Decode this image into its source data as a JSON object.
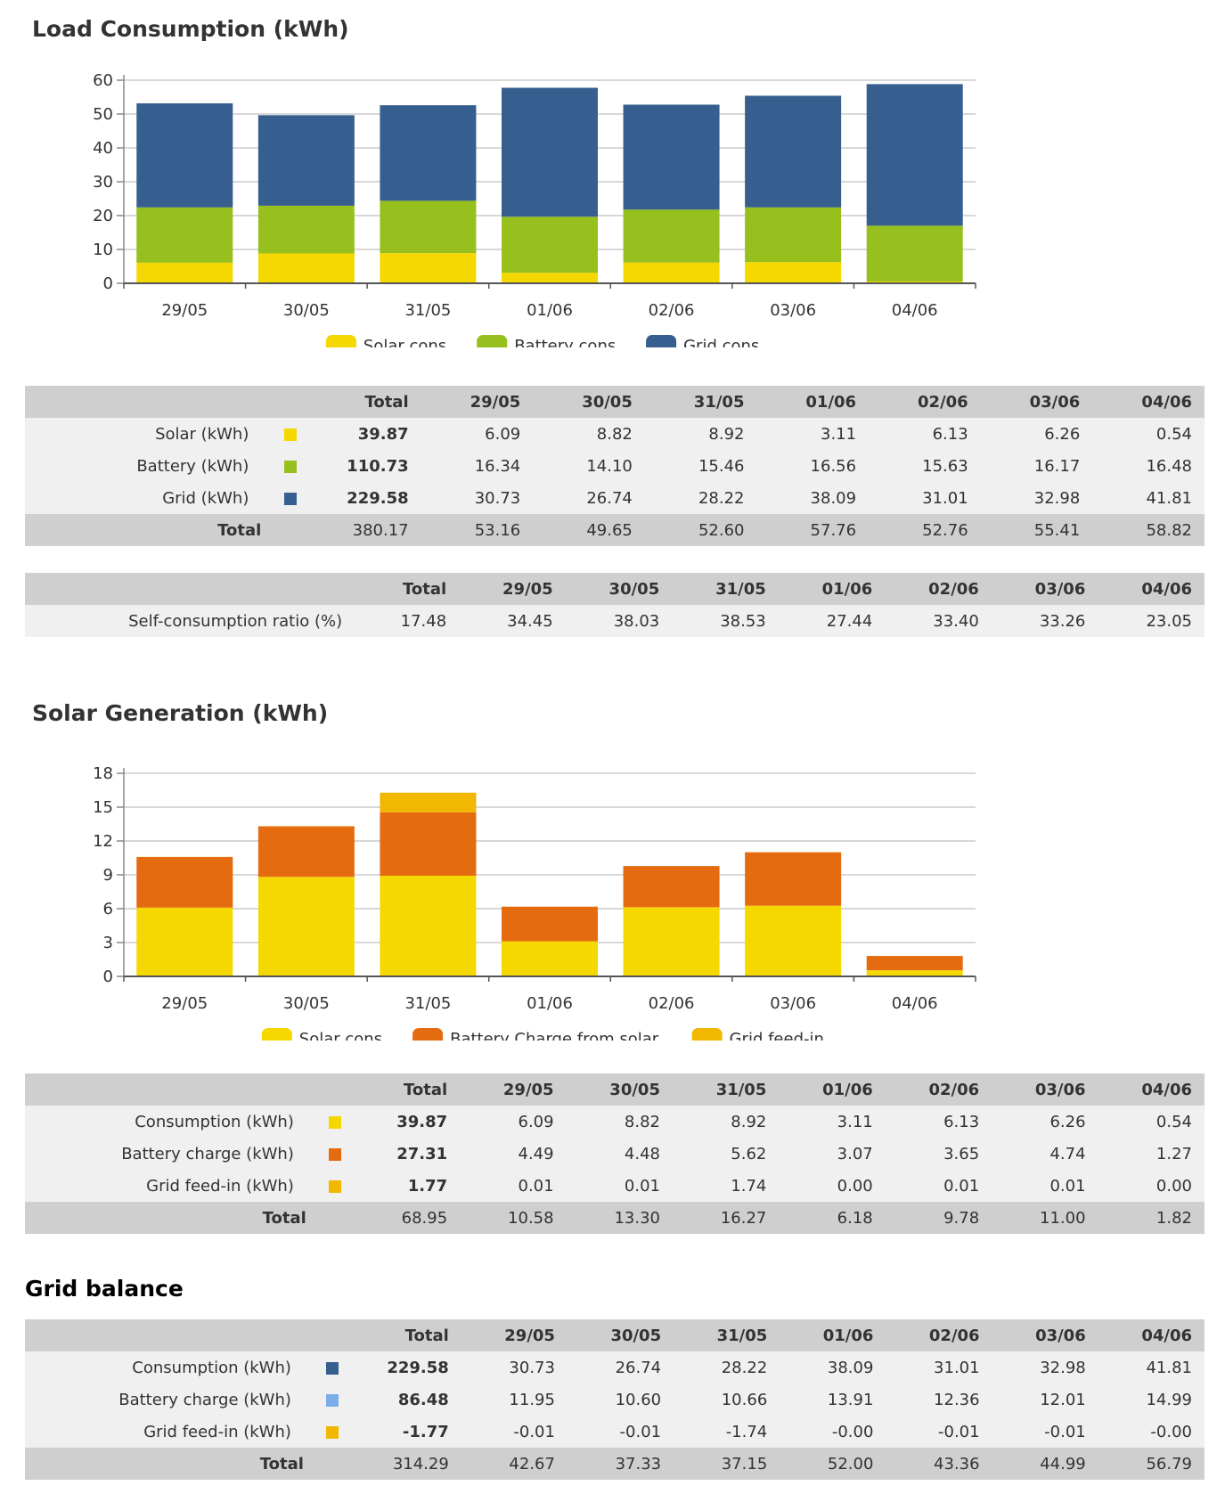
{
  "load": {
    "title": "Load Consumption (kWh)",
    "chart_data": {
      "type": "bar",
      "stacked": true,
      "title": "Load Consumption (kWh)",
      "categories": [
        "29/05",
        "30/05",
        "31/05",
        "01/06",
        "02/06",
        "03/06",
        "04/06"
      ],
      "series": [
        {
          "name": "Solar cons.",
          "color": "#f5d800",
          "values": [
            6.09,
            8.82,
            8.92,
            3.11,
            6.13,
            6.26,
            0.54
          ]
        },
        {
          "name": "Battery cons.",
          "color": "#97bf1d",
          "values": [
            16.34,
            14.1,
            15.46,
            16.56,
            15.63,
            16.17,
            16.48
          ]
        },
        {
          "name": "Grid cons.",
          "color": "#365f8f",
          "values": [
            30.73,
            26.74,
            28.22,
            38.09,
            31.01,
            32.98,
            41.81
          ]
        }
      ],
      "yticks": [
        0,
        10,
        20,
        30,
        40,
        50,
        60
      ],
      "ylim": [
        0,
        60
      ],
      "legend": "bottom"
    },
    "table": {
      "headers": [
        "Total",
        "29/05",
        "30/05",
        "31/05",
        "01/06",
        "02/06",
        "03/06",
        "04/06"
      ],
      "rows": [
        {
          "label": "Solar (kWh)",
          "color": "#f5d800",
          "values": [
            "39.87",
            "6.09",
            "8.82",
            "8.92",
            "3.11",
            "6.13",
            "6.26",
            "0.54"
          ]
        },
        {
          "label": "Battery (kWh)",
          "color": "#97bf1d",
          "values": [
            "110.73",
            "16.34",
            "14.10",
            "15.46",
            "16.56",
            "15.63",
            "16.17",
            "16.48"
          ]
        },
        {
          "label": "Grid (kWh)",
          "color": "#365f8f",
          "values": [
            "229.58",
            "30.73",
            "26.74",
            "28.22",
            "38.09",
            "31.01",
            "32.98",
            "41.81"
          ]
        }
      ],
      "total": {
        "label": "Total",
        "values": [
          "380.17",
          "53.16",
          "49.65",
          "52.60",
          "57.76",
          "52.76",
          "55.41",
          "58.82"
        ]
      }
    },
    "ratio_table": {
      "headers": [
        "Total",
        "29/05",
        "30/05",
        "31/05",
        "01/06",
        "02/06",
        "03/06",
        "04/06"
      ],
      "row": {
        "label": "Self-consumption ratio (%)",
        "values": [
          "17.48",
          "34.45",
          "38.03",
          "38.53",
          "27.44",
          "33.40",
          "33.26",
          "23.05"
        ]
      }
    }
  },
  "solar": {
    "title": "Solar Generation (kWh)",
    "chart_data": {
      "type": "bar",
      "stacked": true,
      "title": "Solar Generation (kWh)",
      "categories": [
        "29/05",
        "30/05",
        "31/05",
        "01/06",
        "02/06",
        "03/06",
        "04/06"
      ],
      "series": [
        {
          "name": "Solar cons.",
          "color": "#f5d800",
          "values": [
            6.09,
            8.82,
            8.92,
            3.11,
            6.13,
            6.26,
            0.54
          ]
        },
        {
          "name": "Battery Charge from solar",
          "color": "#e46b10",
          "values": [
            4.49,
            4.48,
            5.62,
            3.07,
            3.65,
            4.74,
            1.27
          ]
        },
        {
          "name": "Grid feed-in",
          "color": "#f2b700",
          "values": [
            0.01,
            0.01,
            1.74,
            0.0,
            0.01,
            0.01,
            0.0
          ]
        }
      ],
      "yticks": [
        0,
        3,
        6,
        9,
        12,
        15,
        18
      ],
      "ylim": [
        0,
        18
      ],
      "legend": "bottom"
    },
    "table": {
      "headers": [
        "Total",
        "29/05",
        "30/05",
        "31/05",
        "01/06",
        "02/06",
        "03/06",
        "04/06"
      ],
      "rows": [
        {
          "label": "Consumption (kWh)",
          "color": "#f5d800",
          "values": [
            "39.87",
            "6.09",
            "8.82",
            "8.92",
            "3.11",
            "6.13",
            "6.26",
            "0.54"
          ]
        },
        {
          "label": "Battery charge (kWh)",
          "color": "#e46b10",
          "values": [
            "27.31",
            "4.49",
            "4.48",
            "5.62",
            "3.07",
            "3.65",
            "4.74",
            "1.27"
          ]
        },
        {
          "label": "Grid feed-in (kWh)",
          "color": "#f2b700",
          "values": [
            "1.77",
            "0.01",
            "0.01",
            "1.74",
            "0.00",
            "0.01",
            "0.01",
            "0.00"
          ]
        }
      ],
      "total": {
        "label": "Total",
        "values": [
          "68.95",
          "10.58",
          "13.30",
          "16.27",
          "6.18",
          "9.78",
          "11.00",
          "1.82"
        ]
      }
    }
  },
  "grid": {
    "title": "Grid balance",
    "table": {
      "headers": [
        "Total",
        "29/05",
        "30/05",
        "31/05",
        "01/06",
        "02/06",
        "03/06",
        "04/06"
      ],
      "rows": [
        {
          "label": "Consumption (kWh)",
          "color": "#365f8f",
          "values": [
            "229.58",
            "30.73",
            "26.74",
            "28.22",
            "38.09",
            "31.01",
            "32.98",
            "41.81"
          ]
        },
        {
          "label": "Battery charge (kWh)",
          "color": "#7aadea",
          "values": [
            "86.48",
            "11.95",
            "10.60",
            "10.66",
            "13.91",
            "12.36",
            "12.01",
            "14.99"
          ]
        },
        {
          "label": "Grid feed-in (kWh)",
          "color": "#f2b700",
          "values": [
            "-1.77",
            "-0.01",
            "-0.01",
            "-1.74",
            "-0.00",
            "-0.01",
            "-0.01",
            "-0.00"
          ]
        }
      ],
      "total": {
        "label": "Total",
        "values": [
          "314.29",
          "42.67",
          "37.33",
          "37.15",
          "52.00",
          "43.36",
          "44.99",
          "56.79"
        ]
      }
    }
  }
}
